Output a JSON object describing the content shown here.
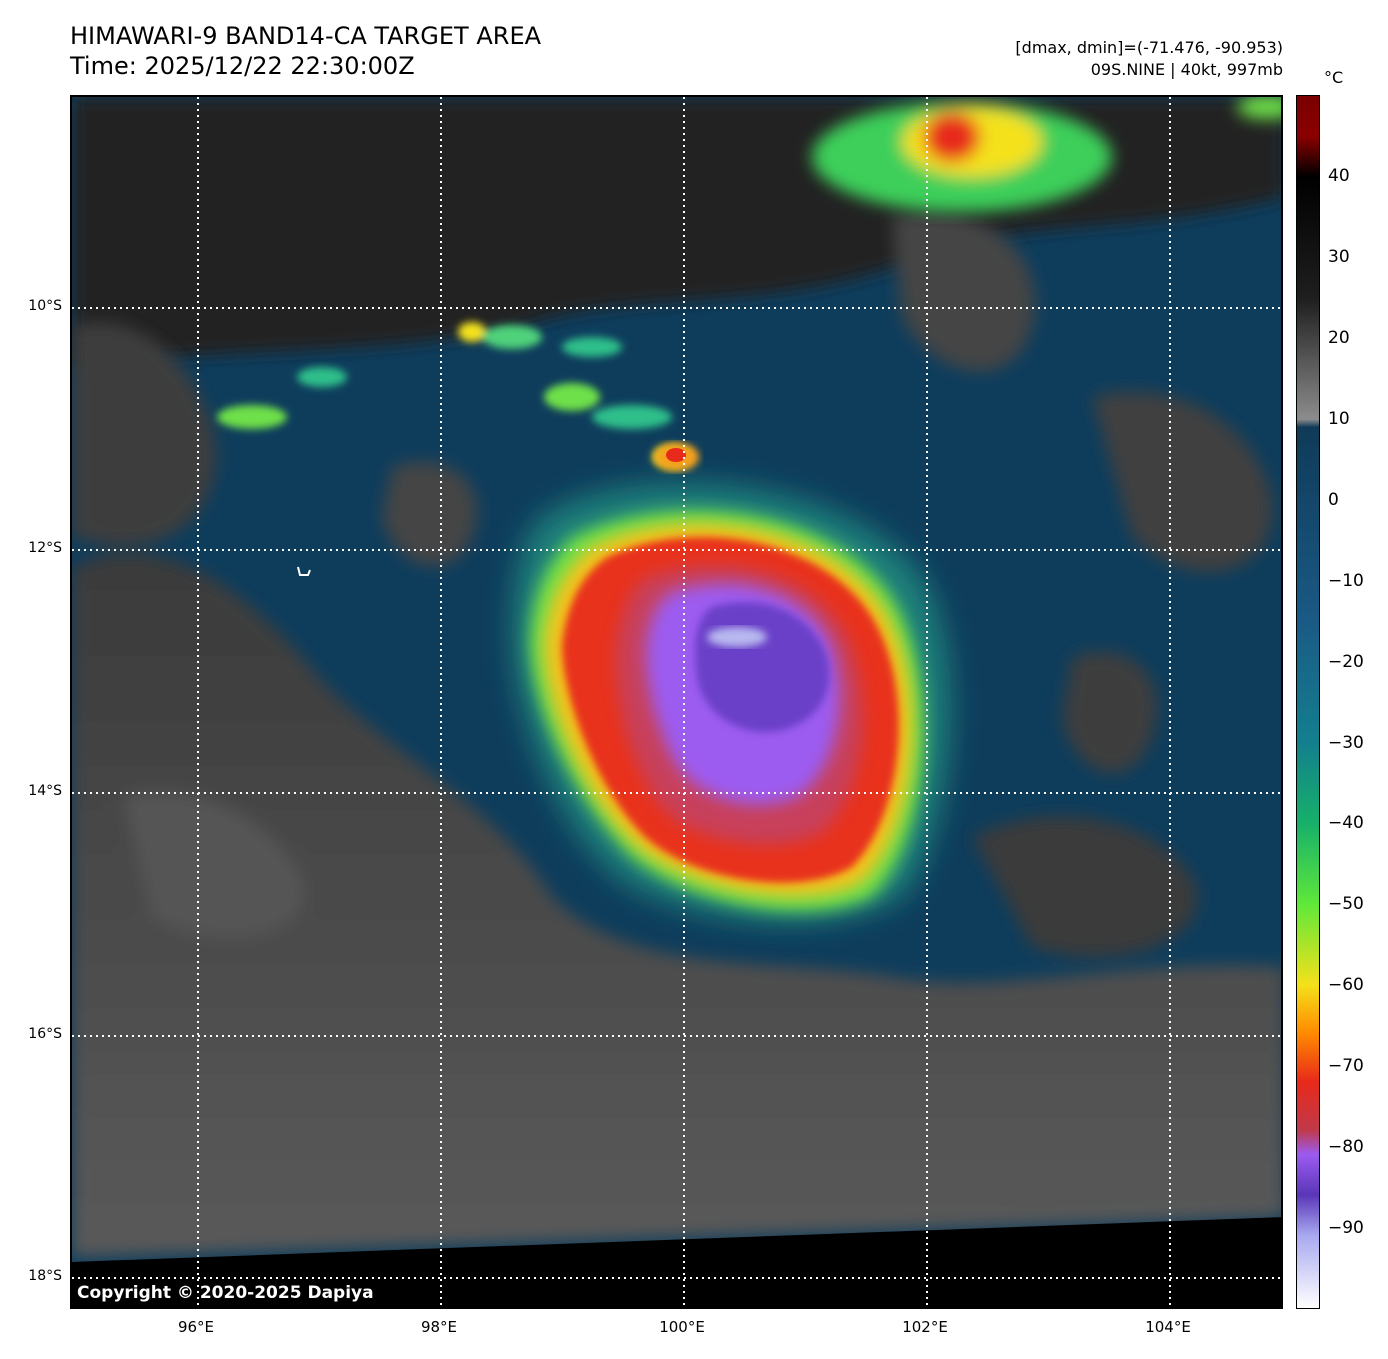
{
  "title_line1": "HIMAWARI-9 BAND14-CA TARGET AREA",
  "title_line2": "Time: 2025/12/22 22:30:00Z",
  "info_line1": "[dmax, dmin]=(-71.476, -90.953)",
  "info_line2": "09S.NINE | 40kt, 997mb",
  "copyright": "Copyright © 2020-2025 Dapiya",
  "lat_labels": [
    "10°S",
    "12°S",
    "14°S",
    "16°S",
    "18°S"
  ],
  "lon_labels": [
    "96°E",
    "98°E",
    "100°E",
    "102°E",
    "104°E"
  ],
  "colorbar": {
    "unit": "°C",
    "ticks": [
      "40",
      "30",
      "20",
      "10",
      "0",
      "−10",
      "−20",
      "−30",
      "−40",
      "−50",
      "−60",
      "−70",
      "−80",
      "−90"
    ],
    "range_c": [
      -100,
      50
    ],
    "stops": [
      {
        "t": 50,
        "color": "#7a0000"
      },
      {
        "t": 45,
        "color": "#8b0000"
      },
      {
        "t": 40,
        "color": "#000000"
      },
      {
        "t": 25,
        "color": "#1e1e1e"
      },
      {
        "t": 10,
        "color": "#8c8c8c"
      },
      {
        "t": 9,
        "color": "#0f3a57"
      },
      {
        "t": -15,
        "color": "#1a5a86"
      },
      {
        "t": -30,
        "color": "#137f8e"
      },
      {
        "t": -40,
        "color": "#16b06a"
      },
      {
        "t": -50,
        "color": "#5fe83a"
      },
      {
        "t": -60,
        "color": "#f4e11a"
      },
      {
        "t": -66,
        "color": "#ff8a00"
      },
      {
        "t": -72,
        "color": "#e82a1a"
      },
      {
        "t": -78,
        "color": "#c0394a"
      },
      {
        "t": -81,
        "color": "#9c5bf0"
      },
      {
        "t": -86,
        "color": "#5a36b8"
      },
      {
        "t": -91,
        "color": "#a8a8f0"
      },
      {
        "t": -100,
        "color": "#ffffff"
      }
    ]
  },
  "map_colors": {
    "ocean": "#0e3d5c",
    "clear_cloud_gray": "#4a4a4a",
    "dark_north": "#262626",
    "space": "#000000",
    "grid": "#ffffff"
  }
}
